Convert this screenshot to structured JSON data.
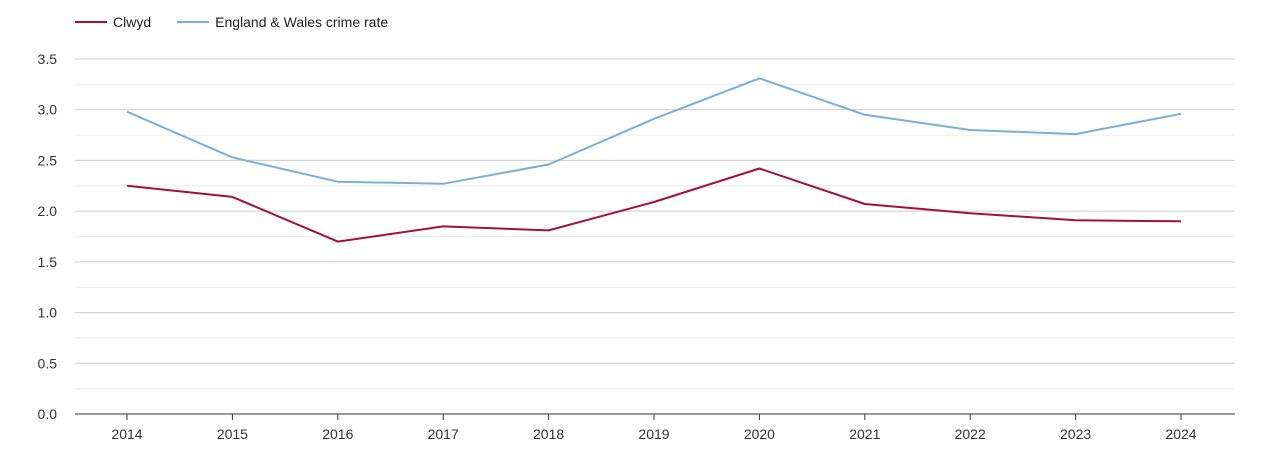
{
  "chart_data": {
    "type": "line",
    "categories": [
      "2014",
      "2015",
      "2016",
      "2017",
      "2018",
      "2019",
      "2020",
      "2021",
      "2022",
      "2023",
      "2024"
    ],
    "series": [
      {
        "name": "Clwyd",
        "color": "#a50f3b",
        "values": [
          2.25,
          2.14,
          1.7,
          1.85,
          1.81,
          2.09,
          2.42,
          2.07,
          1.98,
          1.91,
          1.9
        ]
      },
      {
        "name": "England & Wales crime rate",
        "color": "#7bafd4",
        "values": [
          2.98,
          2.53,
          2.29,
          2.27,
          2.46,
          2.91,
          3.31,
          2.95,
          2.8,
          2.76,
          2.96
        ]
      }
    ],
    "yticks": [
      "0.0",
      "0.5",
      "1.0",
      "1.5",
      "2.0",
      "2.5",
      "3.0",
      "3.5"
    ],
    "ylim": [
      0,
      3.5
    ],
    "grid": true,
    "legend_position": "top-left"
  }
}
